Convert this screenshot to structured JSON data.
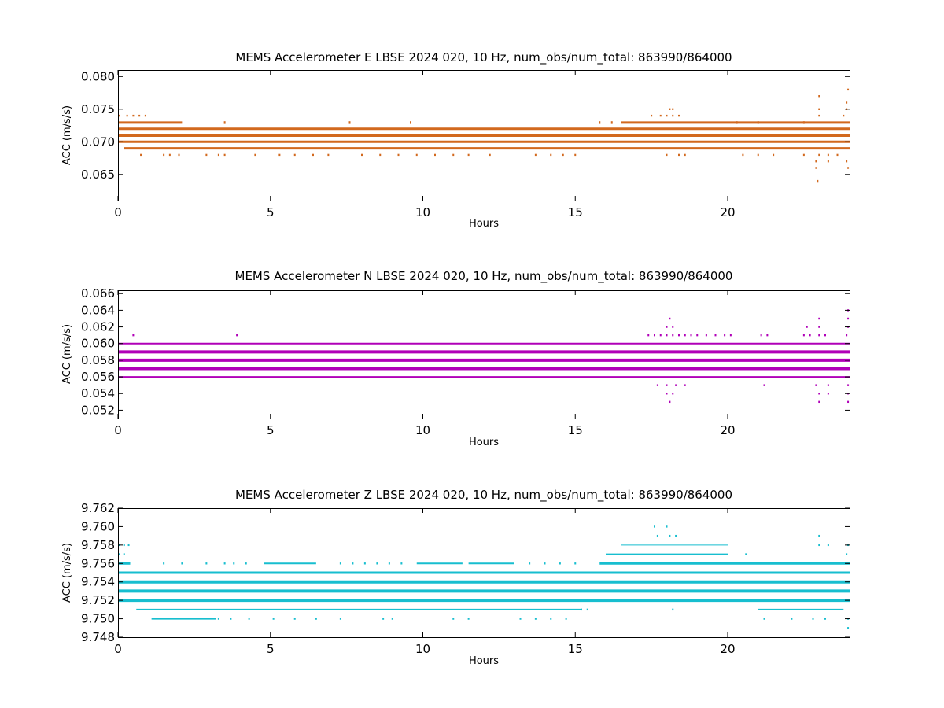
{
  "chart_data": [
    {
      "type": "scatter",
      "title": "MEMS Accelerometer E LBSE 2024 020, 10 Hz, num_obs/num_total: 863990/864000",
      "xlabel": "Hours",
      "ylabel": "ACC (m/s/s)",
      "xlim": [
        0,
        24
      ],
      "ylim": [
        0.061,
        0.081
      ],
      "xticks": [
        "0",
        "5",
        "10",
        "15",
        "20"
      ],
      "yticks": [
        "0.065",
        "0.070",
        "0.075",
        "0.080"
      ],
      "color": "#d2691e",
      "grid": false,
      "bands": [
        {
          "y": 0.072,
          "x": [
            0,
            24
          ],
          "weight": 3
        },
        {
          "y": 0.071,
          "x": [
            0,
            24
          ],
          "weight": 4
        },
        {
          "y": 0.07,
          "x": [
            0,
            24
          ],
          "weight": 3
        },
        {
          "y": 0.069,
          "x": [
            0.2,
            24
          ],
          "weight": 3
        },
        {
          "y": 0.073,
          "x": [
            0,
            2.1
          ],
          "weight": 2
        },
        {
          "y": 0.073,
          "x": [
            16.5,
            24
          ],
          "weight": 2
        }
      ],
      "points": [
        {
          "y": 0.074,
          "x": [
            0.05,
            0.3,
            0.5,
            0.7,
            0.9,
            17.5,
            17.8,
            18.0,
            18.2,
            18.4,
            23.0,
            23.8
          ]
        },
        {
          "y": 0.073,
          "x": [
            3.5,
            7.6,
            9.6,
            15.8,
            16.2,
            20.3,
            21.0,
            22.5
          ]
        },
        {
          "y": 0.068,
          "x": [
            0.75,
            1.5,
            1.7,
            2.0,
            2.9,
            3.3,
            3.5,
            4.5,
            5.3,
            5.8,
            6.4,
            6.9,
            8.0,
            8.6,
            9.2,
            9.8,
            10.4,
            11.0,
            11.5,
            12.2,
            13.7,
            14.2,
            14.6,
            15.0,
            18.0,
            18.4,
            18.6,
            20.5,
            21.0,
            21.5,
            22.5,
            23.0,
            23.3,
            23.6
          ]
        },
        {
          "y": 0.075,
          "x": [
            18.1,
            18.2,
            23.0,
            23.9
          ]
        },
        {
          "y": 0.076,
          "x": [
            23.9
          ]
        },
        {
          "y": 0.077,
          "x": [
            23.0
          ]
        },
        {
          "y": 0.078,
          "x": [
            23.95
          ]
        },
        {
          "y": 0.067,
          "x": [
            22.9,
            23.3,
            23.9
          ]
        },
        {
          "y": 0.066,
          "x": [
            22.9,
            23.95
          ]
        },
        {
          "y": 0.064,
          "x": [
            22.95
          ]
        }
      ]
    },
    {
      "type": "scatter",
      "title": "MEMS Accelerometer N LBSE 2024 020, 10 Hz, num_obs/num_total: 863990/864000",
      "xlabel": "Hours",
      "ylabel": "ACC (m/s/s)",
      "xlim": [
        0,
        24
      ],
      "ylim": [
        0.051,
        0.0664
      ],
      "xticks": [
        "0",
        "5",
        "10",
        "15",
        "20"
      ],
      "yticks": [
        "0.052",
        "0.054",
        "0.056",
        "0.058",
        "0.060",
        "0.062",
        "0.064",
        "0.066"
      ],
      "color": "#b000b8",
      "grid": false,
      "bands": [
        {
          "y": 0.06,
          "x": [
            0,
            24
          ],
          "weight": 2
        },
        {
          "y": 0.059,
          "x": [
            0,
            24
          ],
          "weight": 4
        },
        {
          "y": 0.058,
          "x": [
            0,
            24
          ],
          "weight": 4
        },
        {
          "y": 0.057,
          "x": [
            0,
            24
          ],
          "weight": 4
        },
        {
          "y": 0.056,
          "x": [
            0,
            24
          ],
          "weight": 2
        }
      ],
      "points": [
        {
          "y": 0.061,
          "x": [
            0.5,
            3.9,
            17.4,
            17.6,
            17.8,
            18.0,
            18.2,
            18.4,
            18.6,
            18.8,
            19.0,
            19.3,
            19.6,
            19.9,
            20.1,
            21.1,
            21.3,
            22.5,
            22.7,
            23.0,
            23.2,
            23.9
          ]
        },
        {
          "y": 0.062,
          "x": [
            18.0,
            18.2,
            22.6,
            23.0,
            23.95
          ]
        },
        {
          "y": 0.063,
          "x": [
            18.1,
            23.0,
            23.95
          ]
        },
        {
          "y": 0.064,
          "x": [
            23.95
          ]
        },
        {
          "y": 0.055,
          "x": [
            17.7,
            18.0,
            18.3,
            18.6,
            21.2,
            22.9,
            23.3,
            23.95
          ]
        },
        {
          "y": 0.054,
          "x": [
            18.0,
            18.2,
            23.0,
            23.3,
            23.95
          ]
        },
        {
          "y": 0.053,
          "x": [
            18.1,
            23.0,
            23.95
          ]
        }
      ]
    },
    {
      "type": "scatter",
      "title": "MEMS Accelerometer Z LBSE 2024 020, 10 Hz, num_obs/num_total: 863990/864000",
      "xlabel": "Hours",
      "ylabel": "ACC (m/s/s)",
      "xlim": [
        0,
        24
      ],
      "ylim": [
        9.748,
        9.762
      ],
      "xticks": [
        "0",
        "5",
        "10",
        "15",
        "20"
      ],
      "yticks": [
        "9.748",
        "9.750",
        "9.752",
        "9.754",
        "9.756",
        "9.758",
        "9.760",
        "9.762"
      ],
      "color": "#17becf",
      "grid": false,
      "bands": [
        {
          "y": 9.755,
          "x": [
            0,
            24
          ],
          "weight": 3
        },
        {
          "y": 9.754,
          "x": [
            0,
            24
          ],
          "weight": 4
        },
        {
          "y": 9.753,
          "x": [
            0,
            24
          ],
          "weight": 4
        },
        {
          "y": 9.752,
          "x": [
            0,
            24
          ],
          "weight": 4
        },
        {
          "y": 9.756,
          "x": [
            0,
            0.4
          ],
          "weight": 3
        },
        {
          "y": 9.756,
          "x": [
            15.8,
            24
          ],
          "weight": 3
        },
        {
          "y": 9.756,
          "x": [
            4.8,
            6.5
          ],
          "weight": 2
        },
        {
          "y": 9.756,
          "x": [
            9.8,
            11.3
          ],
          "weight": 2
        },
        {
          "y": 9.756,
          "x": [
            11.5,
            13.0
          ],
          "weight": 2
        },
        {
          "y": 9.751,
          "x": [
            0.6,
            15.2
          ],
          "weight": 2
        },
        {
          "y": 9.751,
          "x": [
            21.0,
            23.8
          ],
          "weight": 2
        },
        {
          "y": 9.75,
          "x": [
            1.1,
            3.2
          ],
          "weight": 2
        },
        {
          "y": 9.757,
          "x": [
            16.0,
            20.0
          ],
          "weight": 2
        },
        {
          "y": 9.758,
          "x": [
            16.5,
            20.0
          ],
          "weight": 1
        }
      ],
      "points": [
        {
          "y": 9.756,
          "x": [
            1.5,
            2.1,
            2.9,
            3.5,
            3.8,
            4.2,
            7.3,
            7.7,
            8.1,
            8.5,
            8.9,
            9.3,
            13.5,
            14.0,
            14.5,
            15.0
          ]
        },
        {
          "y": 9.757,
          "x": [
            0.05,
            0.2,
            20.6,
            23.9
          ]
        },
        {
          "y": 9.758,
          "x": [
            0.05,
            0.2,
            0.35,
            23.0,
            23.3,
            23.95
          ]
        },
        {
          "y": 9.759,
          "x": [
            17.7,
            18.1,
            18.3,
            23.0
          ]
        },
        {
          "y": 9.76,
          "x": [
            17.6,
            18.0
          ]
        },
        {
          "y": 9.751,
          "x": [
            15.2,
            15.4,
            18.2
          ]
        },
        {
          "y": 9.752,
          "x": [
            15.8,
            16.3,
            16.9,
            17.5,
            18.5,
            19.0
          ]
        },
        {
          "y": 9.75,
          "x": [
            3.3,
            3.7,
            4.3,
            5.1,
            5.8,
            6.5,
            7.3,
            8.7,
            9.0,
            11.0,
            11.5,
            13.2,
            13.7,
            14.2,
            14.7,
            21.2,
            22.1,
            22.8,
            23.2,
            23.95
          ]
        },
        {
          "y": 9.749,
          "x": [
            23.95
          ]
        }
      ]
    }
  ]
}
